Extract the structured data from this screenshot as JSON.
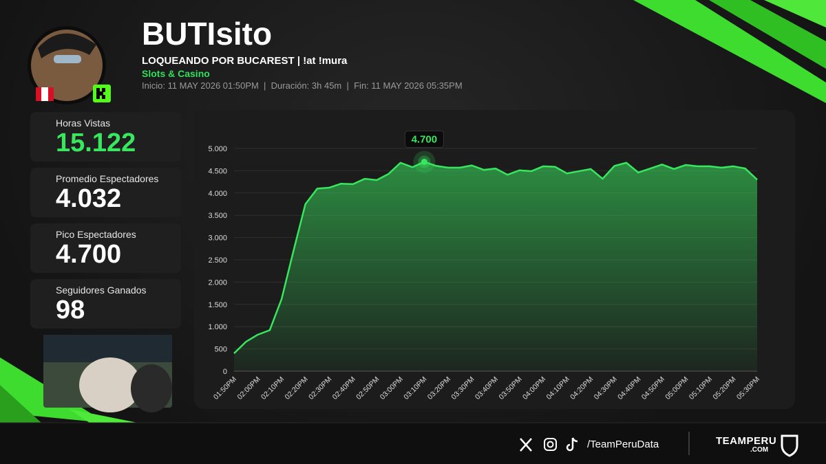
{
  "header": {
    "name": "BUTIsito",
    "stream_title": "LOQUEANDO POR BUCAREST | !at !mura",
    "category": "Slots & Casino",
    "meta": [
      "Inicio: 11 MAY 2026 01:50PM",
      "Duración: 3h 45m",
      "Fin: 11 MAY 2026 05:35PM"
    ]
  },
  "stats": [
    {
      "label": "Horas Vistas",
      "value": "15.122"
    },
    {
      "label": "Promedio Espectadores",
      "value": "4.032"
    },
    {
      "label": "Pico Espectadores",
      "value": "4.700"
    },
    {
      "label": "Seguidores Ganados",
      "value": "98"
    }
  ],
  "footer": {
    "handle": "/TeamPeruData",
    "brand": "TEAMPERU",
    "brand_suffix": ".COM"
  },
  "chart_data": {
    "type": "area",
    "categories": [
      "01:50PM",
      null,
      "02:00PM",
      null,
      "02:10PM",
      null,
      "02:20PM",
      null,
      "02:30PM",
      null,
      "02:40PM",
      null,
      "02:50PM",
      null,
      "03:00PM",
      null,
      "03:10PM",
      null,
      "03:20PM",
      null,
      "03:30PM",
      null,
      "03:40PM",
      null,
      "03:50PM",
      null,
      "04:00PM",
      null,
      "04:10PM",
      null,
      "04:20PM",
      null,
      "04:30PM",
      null,
      "04:40PM",
      null,
      "04:50PM",
      null,
      "05:00PM",
      null,
      "05:10PM",
      null,
      "05:20PM",
      null,
      "05:30PM"
    ],
    "values": [
      400,
      660,
      820,
      920,
      1620,
      2700,
      3750,
      4100,
      4120,
      4210,
      4200,
      4320,
      4290,
      4430,
      4680,
      4580,
      4700,
      4610,
      4570,
      4570,
      4620,
      4520,
      4550,
      4410,
      4510,
      4490,
      4600,
      4590,
      4440,
      4490,
      4540,
      4320,
      4610,
      4680,
      4460,
      4550,
      4640,
      4540,
      4630,
      4600,
      4600,
      4570,
      4600,
      4550,
      4300
    ],
    "value_labels": [
      null,
      null,
      null,
      null,
      null,
      null,
      null,
      null,
      null,
      null,
      null,
      null,
      null,
      null,
      null,
      null,
      "4.700",
      null,
      null,
      null,
      null,
      null,
      null,
      null,
      null,
      null,
      null,
      null,
      null,
      null,
      null,
      null,
      null,
      null,
      null,
      null,
      null,
      null,
      null,
      null,
      null,
      null,
      null,
      null,
      null
    ],
    "color": "#39e75f",
    "ylim": [
      0,
      5000
    ],
    "yticks": [
      0,
      500,
      {
        "value": 1000,
        "label": "1.000"
      },
      {
        "value": 1500,
        "label": "1.500"
      },
      {
        "value": 2000,
        "label": "2.000"
      },
      {
        "value": 2500,
        "label": "2.500"
      },
      {
        "value": 3000,
        "label": "3.000"
      },
      {
        "value": 3500,
        "label": "3.500"
      },
      {
        "value": 4000,
        "label": "4.000"
      },
      {
        "value": 4500,
        "label": "4.500"
      },
      {
        "value": 5000,
        "label": "5.000"
      }
    ],
    "grid": true
  }
}
